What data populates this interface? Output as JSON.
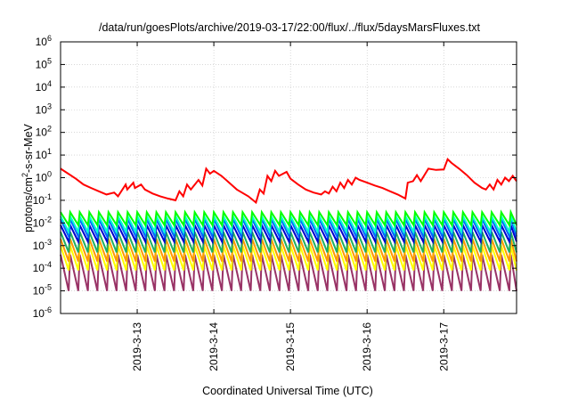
{
  "chart_data": {
    "type": "line",
    "title": "/data/run/goesPlots/archive/2019-03-17/22:00/flux/../flux/5daysMarsFluxes.txt",
    "xlabel": "Coordinated Universal Time (UTC)",
    "ylabel": "protons/cm²-s-sr-MeV",
    "ylabel_parts": {
      "pre": "protons/cm",
      "sup": "2",
      "post": "-s-sr-MeV"
    },
    "y_scale": "log",
    "ylim": [
      1e-06,
      1000000.0
    ],
    "y_ticks": [
      {
        "base": "10",
        "exp": "-6"
      },
      {
        "base": "10",
        "exp": "-5"
      },
      {
        "base": "10",
        "exp": "-4"
      },
      {
        "base": "10",
        "exp": "-3"
      },
      {
        "base": "10",
        "exp": "-2"
      },
      {
        "base": "10",
        "exp": "-1"
      },
      {
        "base": "10",
        "exp": "0"
      },
      {
        "base": "10",
        "exp": "1"
      },
      {
        "base": "10",
        "exp": "2"
      },
      {
        "base": "10",
        "exp": "3"
      },
      {
        "base": "10",
        "exp": "4"
      },
      {
        "base": "10",
        "exp": "5"
      },
      {
        "base": "10",
        "exp": "6"
      }
    ],
    "x_ticks": [
      "2019-3-13",
      "2019-3-14",
      "2019-3-15",
      "2019-3-16",
      "2019-3-17"
    ],
    "x_tick_days": [
      13,
      14,
      15,
      16,
      17
    ],
    "xlim": [
      12.0,
      17.95
    ],
    "grid": true,
    "legend": "none",
    "series": [
      {
        "color": "#ff0000",
        "x": [
          12.0,
          12.1,
          12.2,
          12.3,
          12.4,
          12.5,
          12.6,
          12.7,
          12.75,
          12.85,
          12.87,
          12.95,
          12.97,
          13.05,
          13.1,
          13.2,
          13.3,
          13.4,
          13.5,
          13.55,
          13.6,
          13.65,
          13.7,
          13.8,
          13.85,
          13.9,
          13.95,
          14.0,
          14.1,
          14.2,
          14.3,
          14.45,
          14.55,
          14.6,
          14.65,
          14.7,
          14.75,
          14.8,
          14.85,
          14.95,
          15.0,
          15.1,
          15.2,
          15.3,
          15.4,
          15.45,
          15.5,
          15.55,
          15.6,
          15.65,
          15.7,
          15.75,
          15.8,
          15.85,
          15.9,
          16.0,
          16.1,
          16.2,
          16.3,
          16.4,
          16.5,
          16.53,
          16.6,
          16.65,
          16.7,
          16.8,
          16.9,
          17.0,
          17.05,
          17.1,
          17.2,
          17.3,
          17.4,
          17.5,
          17.55,
          17.6,
          17.65,
          17.7,
          17.75,
          17.8,
          17.85,
          17.9,
          17.95
        ],
        "y": [
          2.5,
          1.5,
          0.9,
          0.5,
          0.35,
          0.25,
          0.18,
          0.22,
          0.15,
          0.5,
          0.3,
          0.6,
          0.35,
          0.5,
          0.3,
          0.2,
          0.15,
          0.12,
          0.1,
          0.25,
          0.15,
          0.5,
          0.3,
          0.8,
          0.45,
          2.5,
          1.5,
          2.0,
          1.2,
          0.6,
          0.3,
          0.15,
          0.08,
          0.3,
          0.2,
          1.2,
          0.7,
          2.0,
          1.2,
          1.8,
          0.9,
          0.5,
          0.3,
          0.22,
          0.18,
          0.25,
          0.2,
          0.4,
          0.25,
          0.6,
          0.35,
          0.8,
          0.5,
          1.0,
          0.8,
          0.6,
          0.45,
          0.35,
          0.25,
          0.18,
          0.12,
          0.6,
          0.7,
          1.3,
          0.7,
          2.5,
          2.2,
          2.3,
          6.5,
          4.5,
          2.5,
          1.3,
          0.6,
          0.35,
          0.3,
          0.5,
          0.3,
          0.8,
          0.5,
          1.0,
          0.7,
          1.2,
          0.7
        ]
      },
      {
        "color": "#00ff00",
        "peak": 0.03,
        "trough": 0.008
      },
      {
        "color": "#00ffd0",
        "peak": 0.02,
        "trough": 0.004
      },
      {
        "color": "#0066ff",
        "peak": 0.015,
        "trough": 0.0025
      },
      {
        "color": "#0000cc",
        "peak": 0.008,
        "trough": 0.0015
      },
      {
        "color": "#20b060",
        "peak": 0.004,
        "trough": 0.0005
      },
      {
        "color": "#ff9900",
        "peak": 0.002,
        "trough": 0.0002
      },
      {
        "color": "#ffff00",
        "peak": 0.001,
        "trough": 8e-05
      },
      {
        "color": "#993366",
        "peak": 0.0004,
        "trough": 1e-05
      }
    ]
  }
}
